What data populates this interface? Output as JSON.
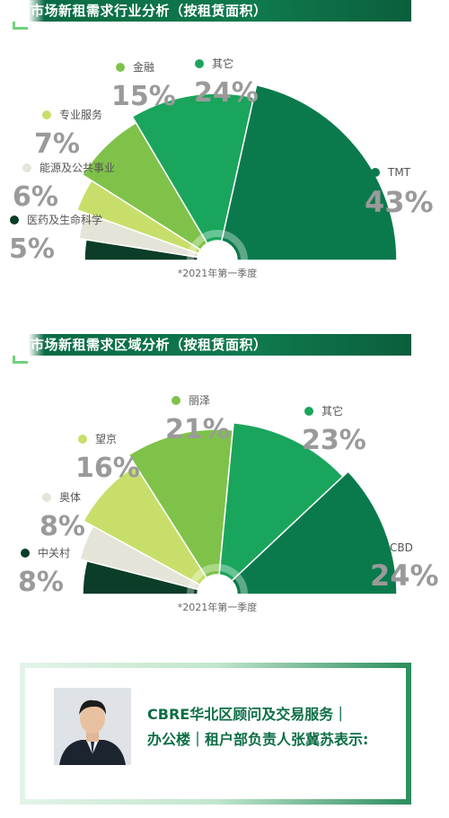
{
  "sections": [
    {
      "title": "市场新租需求行业分析（按租赁面积）",
      "note": "*2021年第一季度"
    },
    {
      "title": "市场新租需求区域分析（按租赁面积）",
      "note": "*2021年第一季度"
    }
  ],
  "chart_data": [
    {
      "type": "pie",
      "title": "市场新租需求行业分析（按租赁面积）",
      "categories": [
        "医药及生命科学",
        "能源及公共事业",
        "专业服务",
        "金融",
        "其它",
        "TMT"
      ],
      "values": [
        5,
        6,
        7,
        15,
        24,
        43
      ],
      "labels": [
        "5%",
        "6%",
        "7%",
        "15%",
        "24%",
        "43%"
      ],
      "colors": [
        "#0c3d28",
        "#e5e4d8",
        "#c7df6a",
        "#7fc24a",
        "#1aa55c",
        "#0a7a4c"
      ],
      "shape": "half-donut"
    },
    {
      "type": "pie",
      "title": "市场新租需求区域分析（按租赁面积）",
      "categories": [
        "中关村",
        "奥体",
        "望京",
        "丽泽",
        "其它",
        "CBD"
      ],
      "values": [
        8,
        8,
        16,
        21,
        23,
        24
      ],
      "labels": [
        "8%",
        "8%",
        "16%",
        "21%",
        "23%",
        "24%"
      ],
      "colors": [
        "#0c3d28",
        "#e5e4d8",
        "#c7df6a",
        "#7fc24a",
        "#1aa55c",
        "#0a7a4c"
      ],
      "shape": "half-donut"
    }
  ],
  "quote": {
    "line1": "CBRE华北区顾问及交易服务｜",
    "line2": "办公楼｜租户部负责人张冀苏表示:"
  }
}
